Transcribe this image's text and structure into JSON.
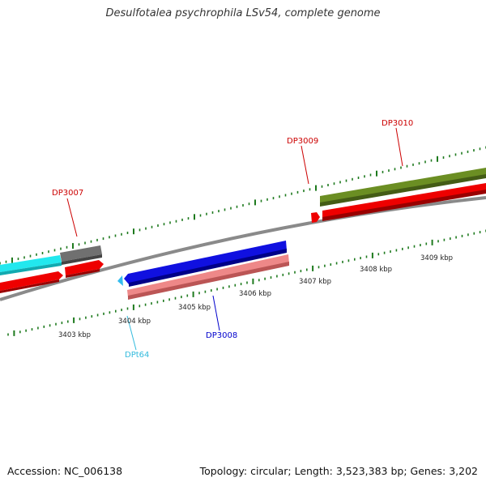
{
  "title": "Desulfotalea psychrophila LSv54, complete genome",
  "footer": {
    "accession": "Accession: NC_006138",
    "summary": "Topology: circular; Length: 3,523,383 bp; Genes: 3,202"
  },
  "colors": {
    "backbone": "#8a8a8a",
    "tick": "#1e7a1e",
    "label_red": "#cc0000",
    "label_blue": "#0000cc",
    "label_cyan": "#33bbdd",
    "feat_cyan": "#22e8ee",
    "feat_gray": "#707070",
    "feat_red": "#ee0000",
    "feat_blue": "#1010e0",
    "feat_pink": "#ee8888",
    "feat_olive": "#6b8e23",
    "feat_lightblue": "#33bbee"
  },
  "scale": {
    "labels": [
      "3403 kbp",
      "3404 kbp",
      "3405 kbp",
      "3406 kbp",
      "3407 kbp",
      "3408 kbp",
      "3409 kbp"
    ]
  },
  "genes": [
    {
      "id": "DP3007",
      "color": "label_red"
    },
    {
      "id": "DP3008",
      "color": "label_blue"
    },
    {
      "id": "DP3009",
      "color": "label_red"
    },
    {
      "id": "DP3010",
      "color": "label_red"
    },
    {
      "id": "DPt64",
      "color": "label_cyan"
    }
  ]
}
